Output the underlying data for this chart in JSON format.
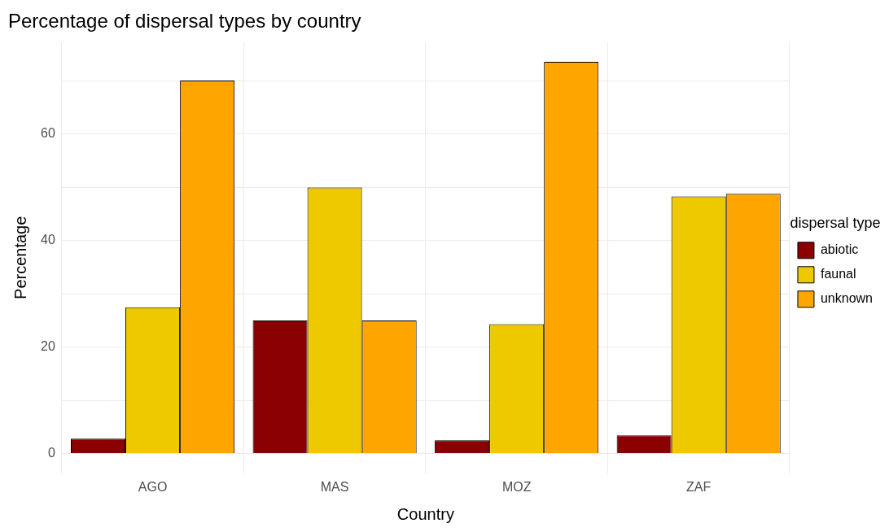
{
  "chart_data": {
    "type": "bar",
    "title": "Percentage of dispersal types by country",
    "xlabel": "Country",
    "ylabel": "Percentage",
    "legend_title": "dispersal type",
    "categories": [
      "AGO",
      "MAS",
      "MOZ",
      "ZAF"
    ],
    "series": [
      {
        "name": "abiotic",
        "color": "#8b0000",
        "values": [
          2.8,
          25,
          2.5,
          3.4
        ]
      },
      {
        "name": "faunal",
        "color": "#eec900",
        "values": [
          27.5,
          50,
          24.3,
          48.3
        ]
      },
      {
        "name": "unknown",
        "color": "#ffa500",
        "values": [
          70.1,
          25,
          73.6,
          48.8
        ]
      }
    ],
    "ylim": [
      -3.7,
      77.3
    ],
    "yticks": [
      0,
      {
        "value": 10,
        "label": null
      },
      20,
      {
        "value": 30,
        "label": null
      },
      40,
      {
        "value": 50,
        "label": null
      },
      60,
      {
        "value": 70,
        "label": null
      }
    ],
    "grid": true,
    "legend": "right"
  }
}
